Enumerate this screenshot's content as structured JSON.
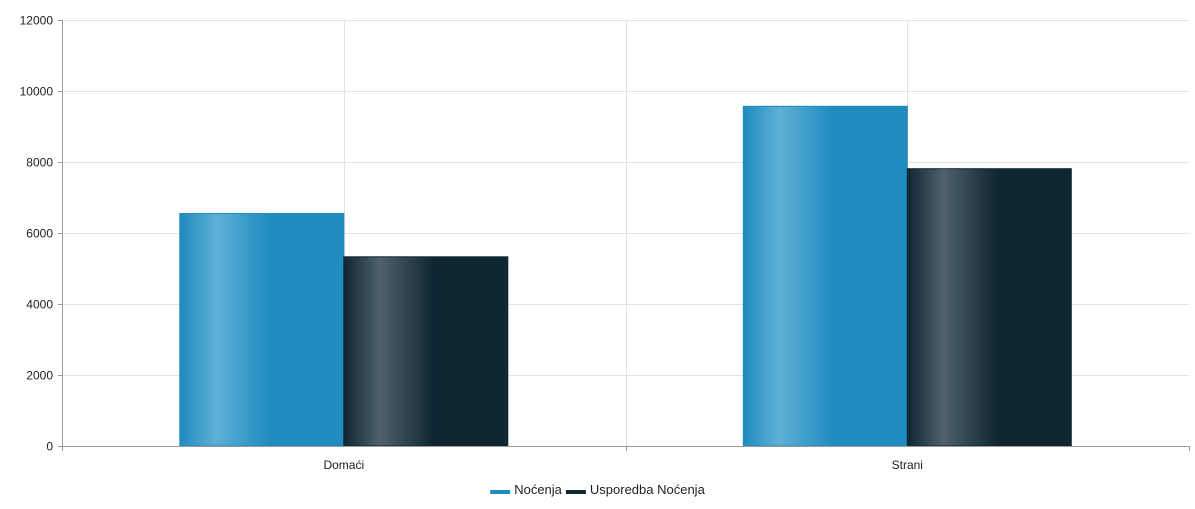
{
  "chart_data": {
    "type": "bar",
    "categories": [
      "Domaći",
      "Strani"
    ],
    "series": [
      {
        "name": "Noćenja",
        "values": [
          6550,
          9570
        ],
        "color": "#1f8bbf",
        "highlight": "#5eb0d6"
      },
      {
        "name": "Usporedba Noćenja",
        "values": [
          5330,
          7810
        ],
        "color": "#0f2633",
        "highlight": "#4f616d"
      }
    ],
    "ylim": [
      0,
      12000
    ],
    "yticks": [
      0,
      2000,
      4000,
      6000,
      8000,
      10000,
      12000
    ],
    "grid": true,
    "legend_position": "bottom-center"
  }
}
